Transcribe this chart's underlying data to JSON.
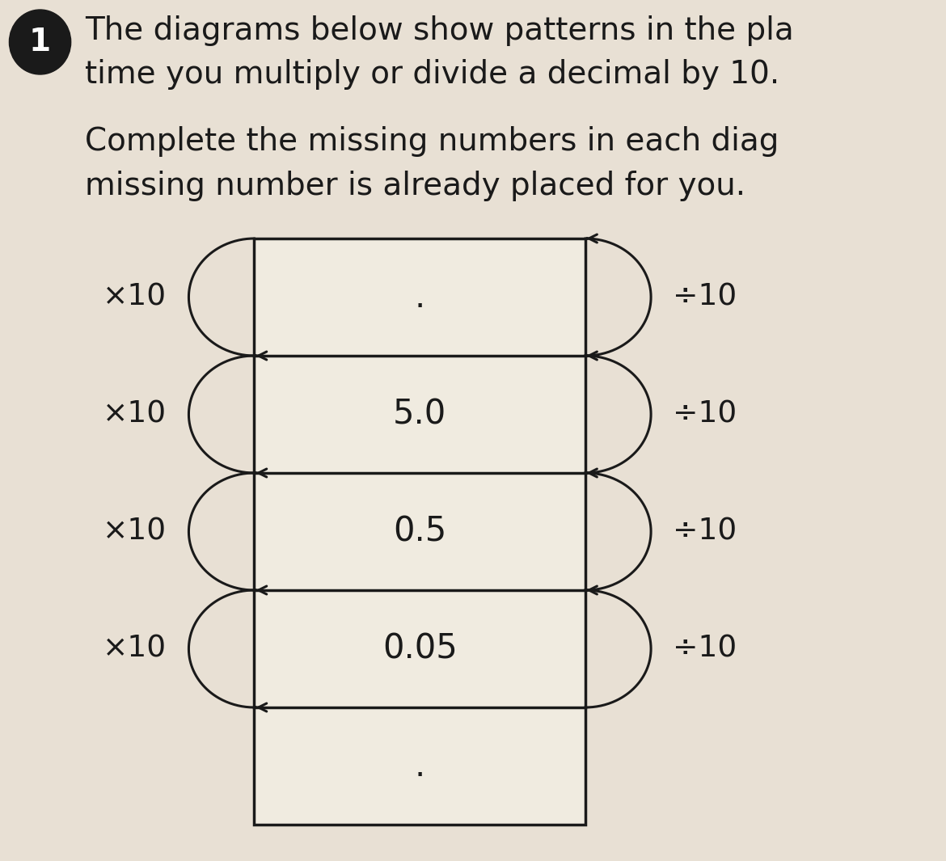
{
  "bg_color": "#e8e0d4",
  "title_line1": "The diagrams below show patterns in the pla",
  "title_line2": "time you multiply or divide a decimal by 10.",
  "subtitle_line1": "Complete the missing numbers in each diag",
  "subtitle_line2": "missing number is already placed for you.",
  "circle_number": "1",
  "row_values": [
    ".",
    "5.0",
    "0.5",
    "0.05",
    "."
  ],
  "left_labels": [
    "×10",
    "×10",
    "×10",
    "×10"
  ],
  "right_labels": [
    "÷10",
    "÷10",
    "÷10",
    "÷10"
  ],
  "title_fontsize": 28,
  "subtitle_fontsize": 28,
  "label_fontsize": 27,
  "value_fontsize": 30,
  "box_color": "#f0ebe0",
  "line_color": "#1a1a1a",
  "text_color": "#1a1a1a"
}
